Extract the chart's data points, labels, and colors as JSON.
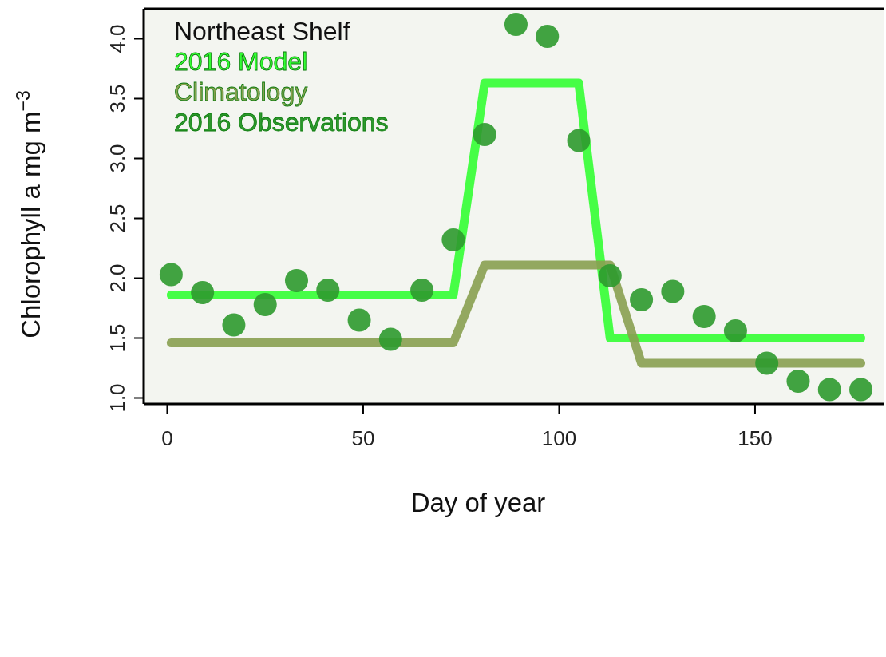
{
  "chart_data": {
    "type": "line",
    "xlabel": "Day of year",
    "ylabel": "Chlorophyll a mg m$^{−3}$",
    "legend_title": "Northeast Shelf",
    "legend": "top left",
    "xlim": [
      -6,
      183
    ],
    "xticks": [
      0,
      50,
      100,
      150
    ],
    "ylim": [
      0.95,
      4.25
    ],
    "yticks": [
      {
        "value": 1,
        "label": "1.0"
      },
      {
        "value": 1.5,
        "label": "1.5"
      },
      {
        "value": 2,
        "label": "2.0"
      },
      {
        "value": 2.5,
        "label": "2.5"
      },
      {
        "value": 3,
        "label": "3.0"
      },
      {
        "value": 3.5,
        "label": "3.5"
      },
      {
        "value": 4,
        "label": "4.0"
      }
    ],
    "series": [
      {
        "name": "2016 Model",
        "type": "line",
        "color": "#33ff33",
        "x": [
          1,
          73,
          81,
          105,
          113,
          177
        ],
        "values": [
          1.86,
          1.86,
          3.63,
          3.63,
          1.5,
          1.5
        ]
      },
      {
        "name": "Climatology",
        "type": "line",
        "color": "#88a050",
        "x": [
          1,
          73,
          81,
          113,
          121,
          177
        ],
        "values": [
          1.46,
          1.46,
          2.11,
          2.11,
          1.29,
          1.29
        ]
      },
      {
        "name": "2016 Observations",
        "type": "scatter",
        "color": "#2e9a2e",
        "x": [
          1,
          9,
          17,
          25,
          33,
          41,
          49,
          57,
          65,
          73,
          81,
          89,
          97,
          105,
          113,
          121,
          129,
          137,
          145,
          153,
          161,
          169,
          177
        ],
        "values": [
          2.03,
          1.88,
          1.61,
          1.78,
          1.98,
          1.9,
          1.65,
          1.49,
          1.9,
          2.32,
          3.2,
          4.12,
          4.02,
          3.15,
          2.02,
          1.82,
          1.89,
          1.68,
          1.56,
          1.29,
          1.14,
          1.07,
          1.07
        ]
      }
    ]
  }
}
